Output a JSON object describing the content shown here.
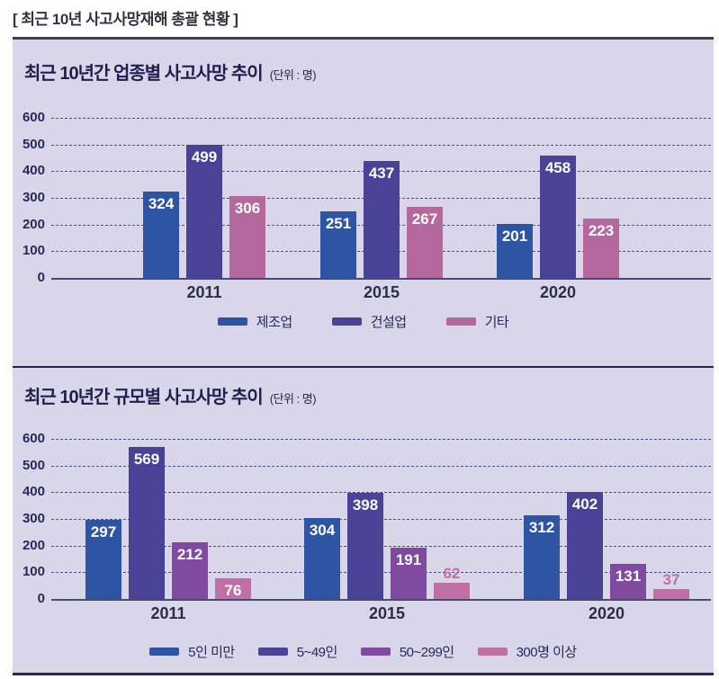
{
  "header": {
    "title": "[ 최근 10년 사고사망재해 총괄 현황 ]"
  },
  "colors": {
    "panel_bg": "#d9d6e9",
    "grid": "#51517f",
    "axis_text": "#252a5a",
    "title_text": "#221d4e",
    "inside_value_label": "#ffffff",
    "outside_value_label": "#c06fa2",
    "blue": "#2e55a4",
    "dark_purple": "#4a4297",
    "medium_purple": "#7f4aa0",
    "pink_chart1": "#b4689d",
    "pink_chart2": "#bf6fa3"
  },
  "chart_data": [
    {
      "type": "bar",
      "title": "최근 10년간 업종별 사고사망 추이",
      "unit_label": "(단위 : 명)",
      "categories": [
        "2011",
        "2015",
        "2020"
      ],
      "series": [
        {
          "name": "제조업",
          "color": "#2e55a4",
          "values": [
            324,
            251,
            201
          ]
        },
        {
          "name": "건설업",
          "color": "#4a4297",
          "values": [
            499,
            437,
            458
          ]
        },
        {
          "name": "기타",
          "color": "#b4689d",
          "values": [
            306,
            267,
            223
          ]
        }
      ],
      "ylim": [
        0,
        600
      ],
      "yticks": [
        0,
        100,
        200,
        300,
        400,
        500,
        600
      ],
      "grid": "horizontal-dashed",
      "legend_position": "bottom"
    },
    {
      "type": "bar",
      "title": "최근 10년간 규모별 사고사망 추이",
      "unit_label": "(단위 : 명)",
      "categories": [
        "2011",
        "2015",
        "2020"
      ],
      "series": [
        {
          "name": "5인 미만",
          "color": "#2e55a4",
          "values": [
            297,
            304,
            312
          ]
        },
        {
          "name": "5~49인",
          "color": "#4a4297",
          "values": [
            569,
            398,
            402
          ]
        },
        {
          "name": "50~299인",
          "color": "#7f4aa0",
          "values": [
            212,
            191,
            131
          ]
        },
        {
          "name": "300명 이상",
          "color": "#bf6fa3",
          "values": [
            76,
            62,
            37
          ]
        }
      ],
      "ylim": [
        0,
        600
      ],
      "yticks": [
        0,
        100,
        200,
        300,
        400,
        500,
        600
      ],
      "grid": "horizontal-dashed",
      "legend_position": "bottom"
    }
  ]
}
